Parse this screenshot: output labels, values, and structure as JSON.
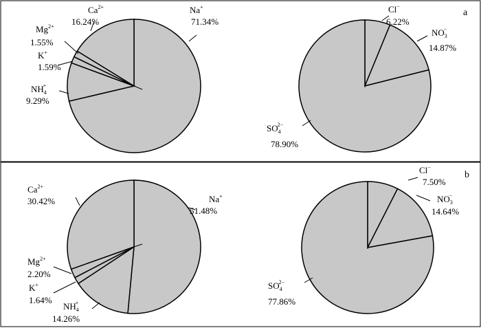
{
  "colors": {
    "slice_fill": "#c8c8c8",
    "outline": "#000000",
    "background": "#ffffff"
  },
  "chart_data": [
    {
      "type": "pie",
      "panel": "a",
      "group": "cations",
      "slices": [
        {
          "ion": "Na",
          "charge": "+",
          "sub": "",
          "pct": 71.34,
          "label": "71.34%"
        },
        {
          "ion": "NH",
          "charge": "+",
          "sub": "4",
          "pct": 9.29,
          "label": "9.29%"
        },
        {
          "ion": "K",
          "charge": "+",
          "sub": "",
          "pct": 1.59,
          "label": "1.59%"
        },
        {
          "ion": "Mg",
          "charge": "2+",
          "sub": "",
          "pct": 1.55,
          "label": "1.55%"
        },
        {
          "ion": "Ca",
          "charge": "2+",
          "sub": "",
          "pct": 16.24,
          "label": "16.24%"
        }
      ]
    },
    {
      "type": "pie",
      "panel": "a",
      "group": "anions",
      "slices": [
        {
          "ion": "Cl",
          "charge": "−",
          "sub": "",
          "pct": 6.22,
          "label": "6.22%"
        },
        {
          "ion": "NO",
          "charge": "−",
          "sub": "3",
          "pct": 14.87,
          "label": "14.87%"
        },
        {
          "ion": "SO",
          "charge": "2−",
          "sub": "4",
          "pct": 78.9,
          "label": "78.90%"
        }
      ]
    },
    {
      "type": "pie",
      "panel": "b",
      "group": "cations",
      "slices": [
        {
          "ion": "Na",
          "charge": "+",
          "sub": "",
          "pct": 51.48,
          "label": "51.48%"
        },
        {
          "ion": "NH",
          "charge": "+",
          "sub": "4",
          "pct": 14.26,
          "label": "14.26%"
        },
        {
          "ion": "K",
          "charge": "+",
          "sub": "",
          "pct": 1.64,
          "label": "1.64%"
        },
        {
          "ion": "Mg",
          "charge": "2+",
          "sub": "",
          "pct": 2.2,
          "label": "2.20%"
        },
        {
          "ion": "Ca",
          "charge": "2+",
          "sub": "",
          "pct": 30.42,
          "label": "30.42%"
        }
      ]
    },
    {
      "type": "pie",
      "panel": "b",
      "group": "anions",
      "slices": [
        {
          "ion": "Cl",
          "charge": "−",
          "sub": "",
          "pct": 7.5,
          "label": "7.50%"
        },
        {
          "ion": "NO",
          "charge": "−",
          "sub": "3",
          "pct": 14.64,
          "label": "14.64%"
        },
        {
          "ion": "SO",
          "charge": "2−",
          "sub": "4",
          "pct": 77.86,
          "label": "77.86%"
        }
      ]
    }
  ],
  "panels": {
    "a": {
      "tag": "a"
    },
    "b": {
      "tag": "b"
    }
  }
}
